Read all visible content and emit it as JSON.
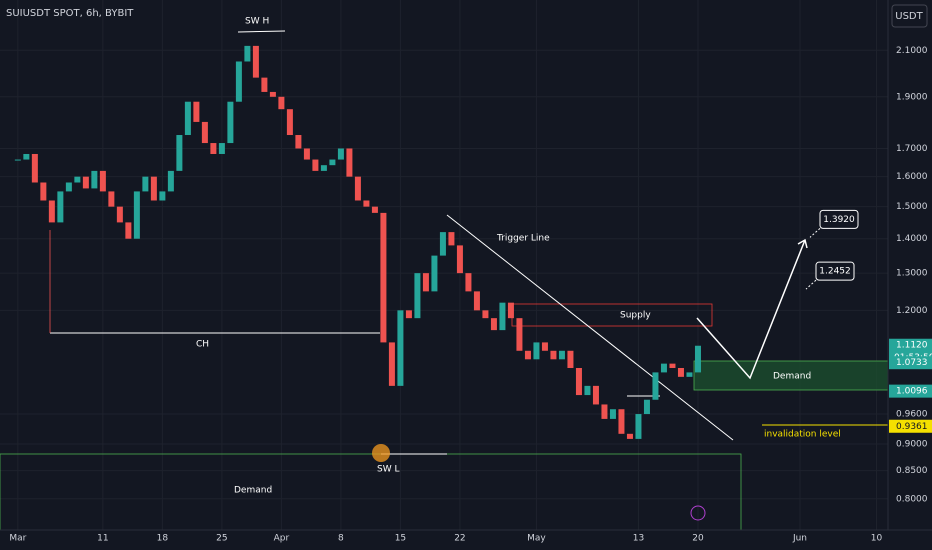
{
  "chart_data": {
    "type": "candlestick",
    "title": "SUIUSDT SPOT, 6h, BYBIT",
    "currency": "USDT",
    "log_scale": true,
    "up_color": "#26a69a",
    "down_color": "#ef5350",
    "x": [
      0,
      1,
      2,
      3,
      4,
      5,
      6,
      7,
      8,
      9,
      10,
      11,
      12,
      13,
      14,
      15,
      16,
      17,
      18,
      19,
      20,
      21,
      22,
      23,
      24,
      25,
      26,
      27,
      28,
      29,
      30,
      31,
      32,
      33,
      34,
      35,
      36,
      37,
      38,
      39,
      40,
      41,
      42,
      43,
      44,
      45,
      46,
      47,
      48,
      49,
      50,
      51,
      52,
      53,
      54,
      55,
      56,
      57,
      58,
      59,
      60,
      61,
      62,
      63,
      64,
      65,
      66,
      67,
      68,
      69,
      70,
      71,
      72,
      73,
      74,
      75,
      76,
      77,
      78,
      79,
      80
    ],
    "values": [
      1.66,
      1.68,
      1.58,
      1.52,
      1.45,
      1.55,
      1.58,
      1.6,
      1.56,
      1.62,
      1.55,
      1.5,
      1.45,
      1.4,
      1.55,
      1.6,
      1.52,
      1.55,
      1.62,
      1.75,
      1.88,
      1.8,
      1.72,
      1.68,
      1.72,
      1.88,
      2.05,
      2.12,
      1.98,
      1.92,
      1.9,
      1.85,
      1.75,
      1.7,
      1.66,
      1.62,
      1.64,
      1.66,
      1.7,
      1.6,
      1.52,
      1.5,
      1.48,
      1.12,
      1.02,
      1.2,
      1.18,
      1.3,
      1.25,
      1.35,
      1.42,
      1.38,
      1.3,
      1.25,
      1.2,
      1.18,
      1.15,
      1.22,
      1.18,
      1.1,
      1.08,
      1.12,
      1.1,
      1.08,
      1.1,
      1.06,
      1.0,
      1.02,
      0.98,
      0.95,
      0.97,
      0.92,
      0.91,
      0.96,
      0.99,
      1.05,
      1.07,
      1.06,
      1.04,
      1.05,
      1.112
    ],
    "xlim": [
      -2.1,
      102
    ],
    "ylim": [
      0.748,
      2.34
    ],
    "xticks": [
      {
        "value": 0,
        "label": "Mar"
      },
      {
        "value": 10,
        "label": "11"
      },
      {
        "value": 17,
        "label": "18"
      },
      {
        "value": 24,
        "label": "25"
      },
      {
        "value": 31,
        "label": "Apr"
      },
      {
        "value": 38,
        "label": "8"
      },
      {
        "value": 45,
        "label": "15"
      },
      {
        "value": 52,
        "label": "22"
      },
      {
        "value": 61,
        "label": "May"
      },
      {
        "value": 73,
        "label": "13"
      },
      {
        "value": 80,
        "label": "20"
      },
      {
        "value": 92,
        "label": "Jun"
      },
      {
        "value": 101,
        "label": "10"
      }
    ],
    "yticks": [
      {
        "value": 2.1,
        "label": "2.1000"
      },
      {
        "value": 1.9,
        "label": "1.9000"
      },
      {
        "value": 1.7,
        "label": "1.7000"
      },
      {
        "value": 1.6,
        "label": "1.6000"
      },
      {
        "value": 1.5,
        "label": "1.5000"
      },
      {
        "value": 1.4,
        "label": "1.4000"
      },
      {
        "value": 1.3,
        "label": "1.3000"
      },
      {
        "value": 1.2,
        "label": "1.2000"
      },
      {
        "value": 0.96,
        "label": "0.9600"
      },
      {
        "value": 0.9,
        "label": "0.9000"
      },
      {
        "value": 0.85,
        "label": "0.8500"
      },
      {
        "value": 0.8,
        "label": "0.8000"
      }
    ],
    "price_badges": [
      {
        "value": 1.112,
        "label": "1.1120",
        "color": "#26a69a"
      },
      {
        "value": 1.0733,
        "label": "1.0733",
        "color": "#26a69a"
      },
      {
        "value": 1.0096,
        "label": "1.0096",
        "color": "#26a69a"
      },
      {
        "value": 0.9361,
        "label": "0.9361",
        "color": "#f5e000"
      }
    ],
    "countdown": "01:53:50",
    "targets": [
      {
        "value": 1.392,
        "label": "1.3920"
      },
      {
        "value": 1.2452,
        "label": "1.2452"
      }
    ],
    "annotations": {
      "sw_high": "SW H",
      "ch": "CH",
      "sw_low": "SW L",
      "demand_low": "Demand",
      "demand_high": "Demand",
      "supply": "Supply",
      "trigger": "Trigger Line",
      "invalidation": "invalidation level"
    }
  }
}
